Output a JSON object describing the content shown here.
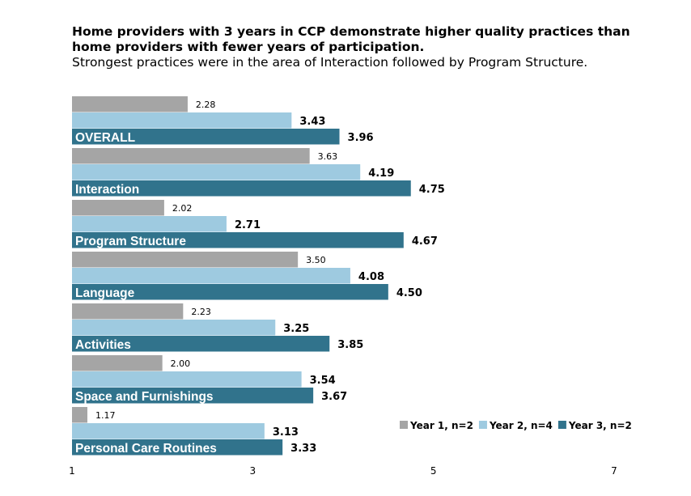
{
  "chart_data": {
    "type": "bar",
    "orientation": "horizontal",
    "title": "Home providers with 3 years in CCP demonstrate higher quality practices than home providers with fewer years of participation.",
    "subtitle": "Strongest practices were in the area of Interaction followed by Program Structure.",
    "categories": [
      "OVERALL",
      "Interaction",
      "Program Structure",
      "Language",
      "Activities",
      "Space and Furnishings",
      "Personal Care Routines"
    ],
    "series": [
      {
        "name": "Year 1, n=2",
        "color": "#a5a5a5",
        "values": [
          2.28,
          3.63,
          2.02,
          3.5,
          2.23,
          2.0,
          1.17
        ],
        "labels": [
          "2.28",
          "3.63",
          "2.02",
          "3.50",
          "2.23",
          "2.00",
          "1.17"
        ]
      },
      {
        "name": "Year 2, n=4",
        "color": "#9ecae0",
        "values": [
          3.43,
          4.19,
          2.71,
          4.08,
          3.25,
          3.54,
          3.13
        ],
        "labels": [
          "3.43",
          "4.19",
          "2.71",
          "4.08",
          "3.25",
          "3.54",
          "3.13"
        ]
      },
      {
        "name": "Year 3, n=2",
        "color": "#31738c",
        "values": [
          3.96,
          4.75,
          4.67,
          4.5,
          3.85,
          3.67,
          3.33
        ],
        "labels": [
          "3.96",
          "4.75",
          "4.67",
          "4.50",
          "3.85",
          "3.67",
          "3.33"
        ]
      }
    ],
    "xlim": [
      1,
      7
    ],
    "xticks": [
      "1",
      "3",
      "5",
      "7"
    ],
    "grid": false,
    "legend": "bottom-right"
  }
}
